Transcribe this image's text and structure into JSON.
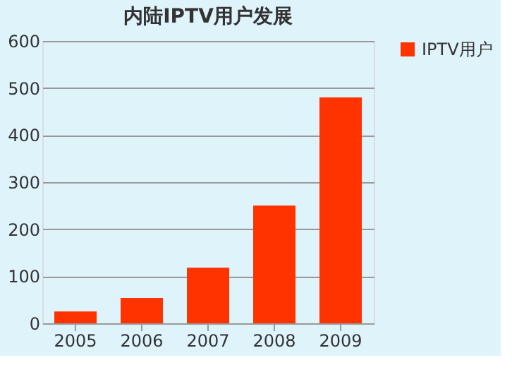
{
  "chart_data": {
    "type": "bar",
    "title": "内陆IPTV用户发展",
    "categories": [
      "2005",
      "2006",
      "2007",
      "2008",
      "2009"
    ],
    "series": [
      {
        "name": "IPTV用户",
        "color": "#ff3300",
        "values": [
          25,
          54,
          118,
          250,
          480
        ]
      }
    ],
    "ylim": [
      0,
      600
    ],
    "yticks": [
      0,
      100,
      200,
      300,
      400,
      500,
      600
    ],
    "grid": "y",
    "legend": "right"
  }
}
